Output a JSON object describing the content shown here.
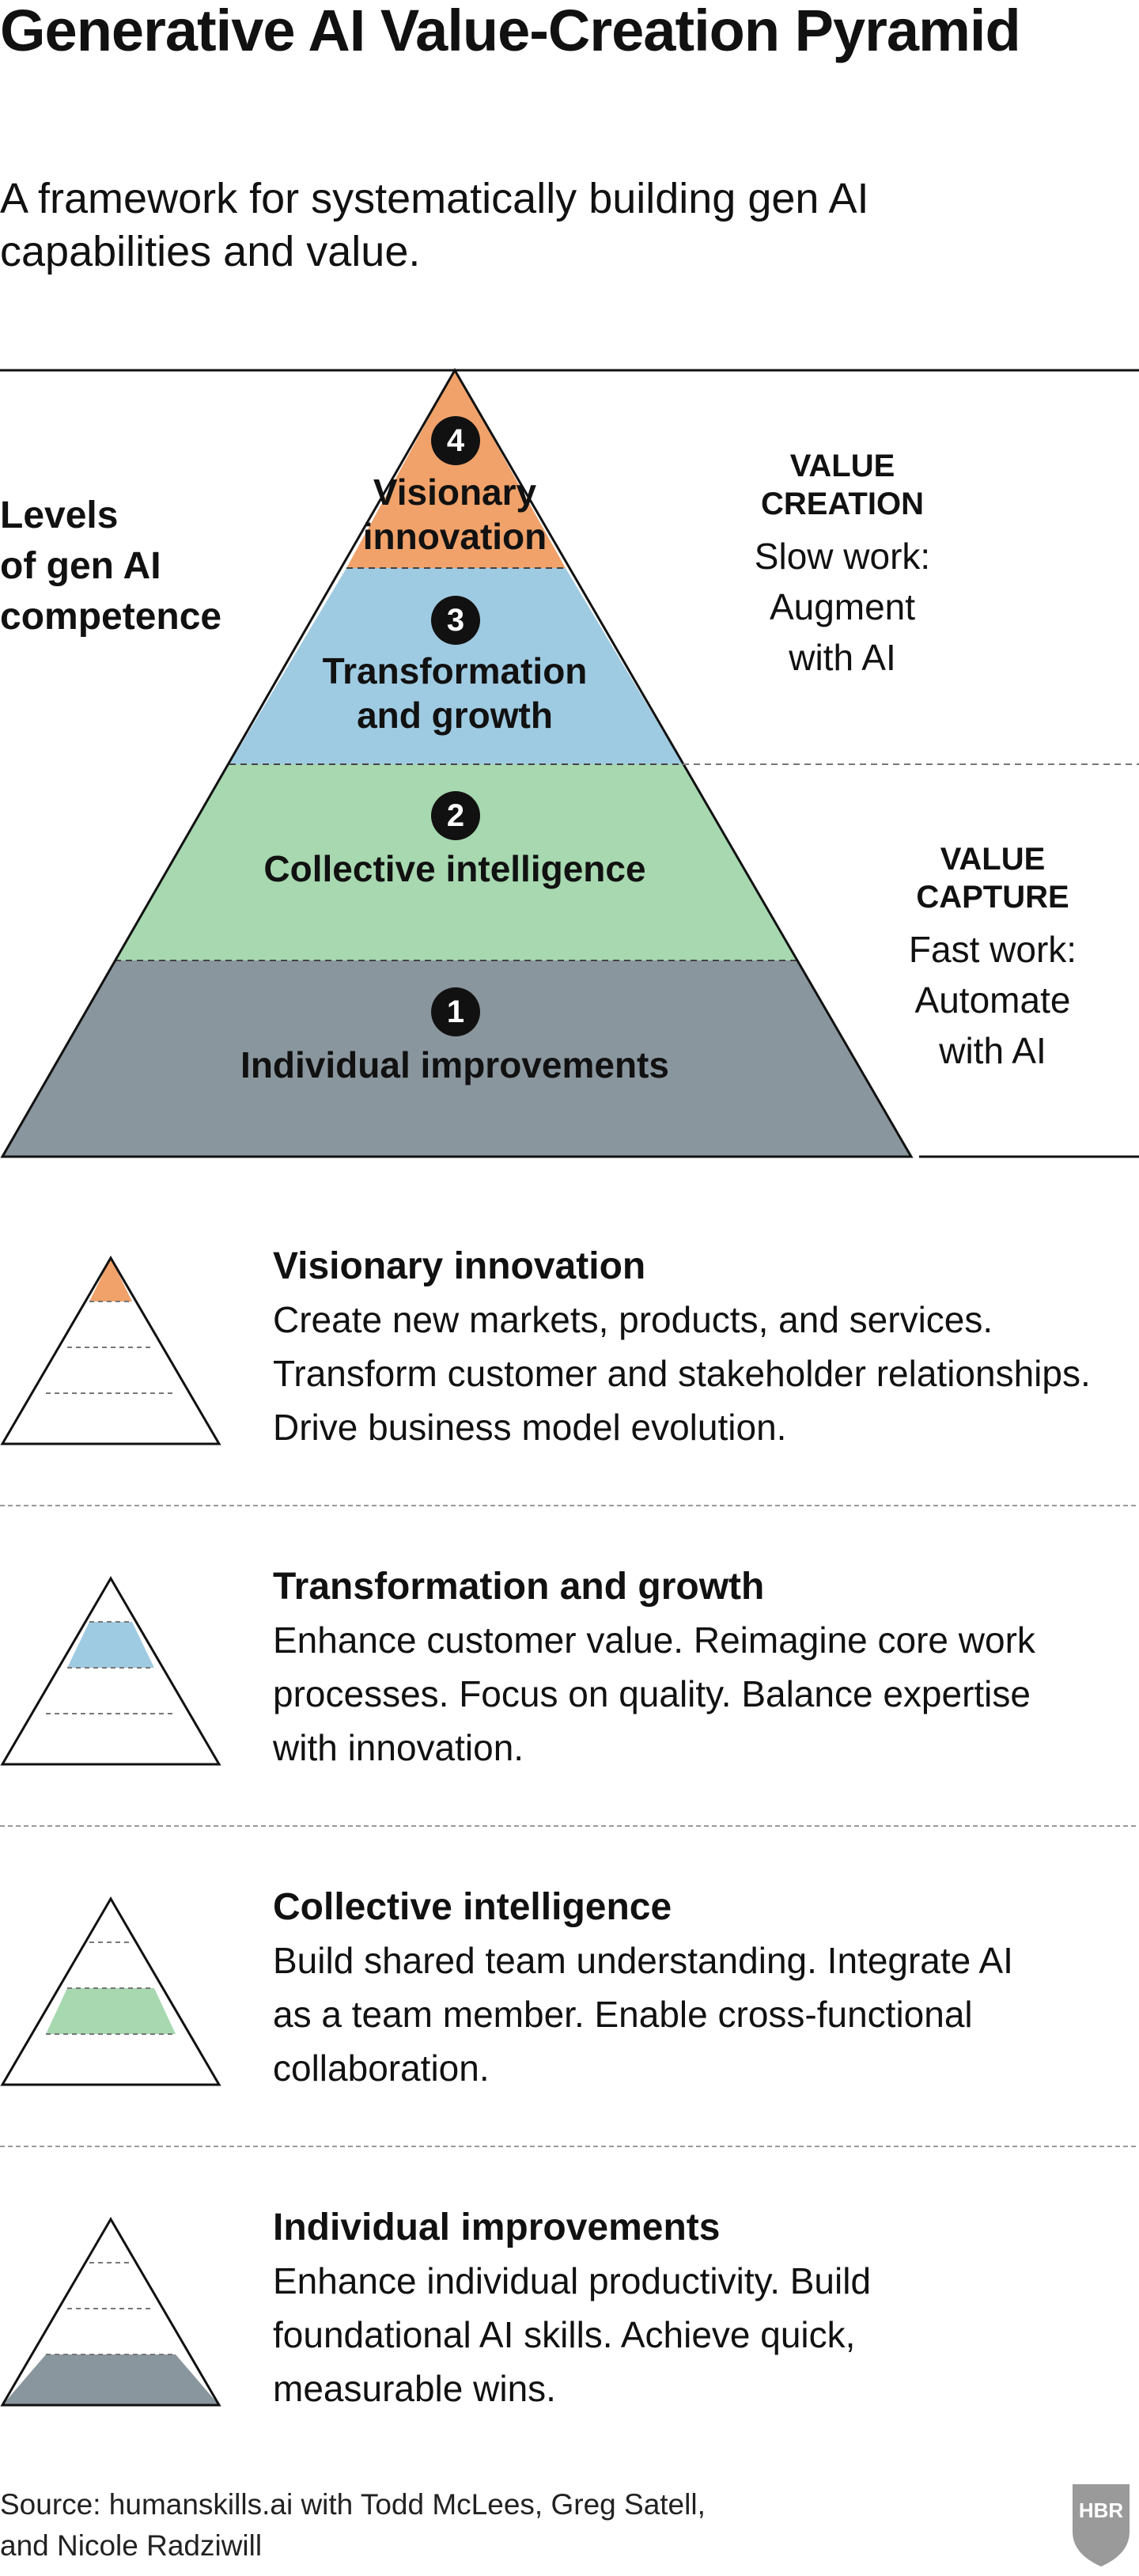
{
  "title": "Generative AI Value-Creation Pyramid",
  "subtitle": "A framework for systematically building gen AI capabilities and value.",
  "levels_label": [
    "Levels",
    "of gen AI",
    "competence"
  ],
  "value_creation": {
    "heading": [
      "VALUE",
      "CREATION"
    ],
    "text": [
      "Slow work:",
      "Augment",
      "with AI"
    ]
  },
  "value_capture": {
    "heading": [
      "VALUE",
      "CAPTURE"
    ],
    "text": [
      "Fast work:",
      "Automate",
      "with AI"
    ]
  },
  "pyramid": {
    "tiers": [
      {
        "number": "4",
        "label_lines": [
          "Visionary",
          "innovation"
        ],
        "color": "#f0a26a"
      },
      {
        "number": "3",
        "label_lines": [
          "Transformation",
          "and growth"
        ],
        "color": "#9fcbe2"
      },
      {
        "number": "2",
        "label_lines": [
          "Collective intelligence"
        ],
        "color": "#a7d8b0"
      },
      {
        "number": "1",
        "label_lines": [
          "Individual improvements"
        ],
        "color": "#8a969e"
      }
    ]
  },
  "legend": [
    {
      "title": "Visionary innovation",
      "lines": [
        "Create new markets, products, and services.",
        "Transform customer and stakeholder relationships.",
        "Drive business model evolution."
      ],
      "color": "#f0a26a"
    },
    {
      "title": "Transformation and growth",
      "lines": [
        "Enhance customer value. Reimagine core work",
        "processes. Focus on quality. Balance expertise",
        "with innovation."
      ],
      "color": "#9fcbe2"
    },
    {
      "title": "Collective intelligence",
      "lines": [
        "Build shared team understanding. Integrate AI",
        "as a team member. Enable cross-functional",
        "collaboration."
      ],
      "color": "#a7d8b0"
    },
    {
      "title": "Individual improvements",
      "lines": [
        "Enhance individual productivity. Build",
        "foundational AI skills. Achieve quick,",
        "measurable wins."
      ],
      "color": "#8a969e"
    }
  ],
  "source": [
    "Source: humanskills.ai with Todd McLees, Greg Satell,",
    "and Nicole Radziwill"
  ],
  "logo_text": "HBR"
}
